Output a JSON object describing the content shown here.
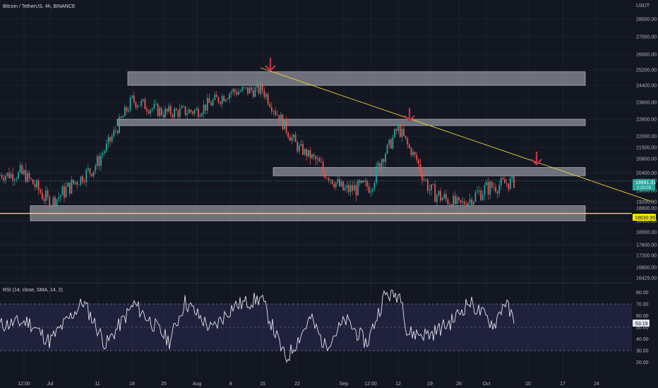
{
  "header": {
    "symbol_title": "Bitcoin / TetherUS, 4h, BINANCE",
    "currency": "USDT"
  },
  "price_badges": {
    "current_price": "19991.31",
    "countdown": "2:20:03",
    "line_price": "18630.95"
  },
  "rsi_label": "RSI (14, close, SMA, 14, 2)",
  "rsi_value": "53.19",
  "colors": {
    "background": "#131722",
    "bull": "#26a69a",
    "bear": "#ef5350",
    "zone": "#9598a1",
    "trendline": "#f0d43a",
    "support_line": "#f7e600",
    "arrow": "#c2334d",
    "rsi_line": "#e0e3eb",
    "rsi_band": "#2a2a50"
  },
  "chart_data": [
    {
      "type": "candlestick",
      "title": "Bitcoin / TetherUS, 4h, BINANCE",
      "y_axis_unit": "USDT",
      "y_ticks": [
        16425,
        16800,
        17200,
        17600,
        18000,
        18400,
        18800,
        19200,
        19600,
        20000,
        20400,
        20800,
        21500,
        22000,
        22800,
        23600,
        24400,
        25200,
        26000,
        27000,
        28000
      ],
      "y_tick_labels": [
        "16425.00",
        "16800.00",
        "17200.00",
        "17600.00",
        "18000.00",
        "18400.00",
        "18800.00",
        "19200.00",
        "19600.00",
        "20000.00",
        "20400.00",
        "20800.00",
        "21500.00",
        "22000.00",
        "22800.00",
        "23600.00",
        "24400.00",
        "25200.00",
        "26000.00",
        "27000.00",
        "28000.00"
      ],
      "x_ticks": [
        "12:00",
        "Jul",
        "11",
        "18",
        "25",
        "Aug",
        "8",
        "15",
        "22",
        "Sep",
        "12:00",
        "12",
        "19",
        "26",
        "Oct",
        "10",
        "17",
        "24"
      ],
      "current_price": 19991.31,
      "horizontal_line": 18630.95,
      "zones": [
        {
          "from_label": "Jul",
          "to_label": "17",
          "low": 24400,
          "high": 25100
        },
        {
          "from_label": "18",
          "to_label": "17",
          "low": 22500,
          "high": 22800
        },
        {
          "from_label": "22",
          "to_label": "17",
          "low": 20250,
          "high": 20550
        },
        {
          "from_label": "Jul",
          "to_label": "17",
          "low": 18400,
          "high": 18950
        }
      ],
      "trendline": [
        {
          "x_label": "15",
          "price": 25300
        },
        {
          "x_label": "24",
          "price": 19100
        }
      ],
      "arrows_at": [
        "15",
        "12",
        "10"
      ],
      "path_anchors": [
        {
          "x_label": "12:00",
          "price": 20300
        },
        {
          "x_label": "Jul",
          "price": 19100
        },
        {
          "x_label": "11",
          "price": 20700
        },
        {
          "x_label": "18",
          "price": 23700
        },
        {
          "x_label": "25",
          "price": 23100
        },
        {
          "x_label": "Aug",
          "price": 23200
        },
        {
          "x_label": "8",
          "price": 24100
        },
        {
          "x_label": "15",
          "price": 24200
        },
        {
          "x_label": "22",
          "price": 21500
        },
        {
          "x_label": "Sep",
          "price": 19600
        },
        {
          "x_label": "12:00",
          "price": 19800
        },
        {
          "x_label": "12",
          "price": 22400
        },
        {
          "x_label": "19",
          "price": 19600
        },
        {
          "x_label": "26",
          "price": 19000
        },
        {
          "x_label": "Oct",
          "price": 19700
        },
        {
          "x_label": "Oct",
          "price": 19991.31
        }
      ]
    },
    {
      "type": "line",
      "title": "RSI (14, close, SMA, 14, 2)",
      "y_ticks": [
        20,
        30,
        40,
        50,
        60,
        70,
        80
      ],
      "y_tick_labels": [
        "20.00",
        "30.00",
        "40.00",
        "50.00",
        "60.00",
        "70.00",
        "80.00"
      ],
      "band": [
        30,
        70
      ],
      "last_value": 53.19
    }
  ]
}
